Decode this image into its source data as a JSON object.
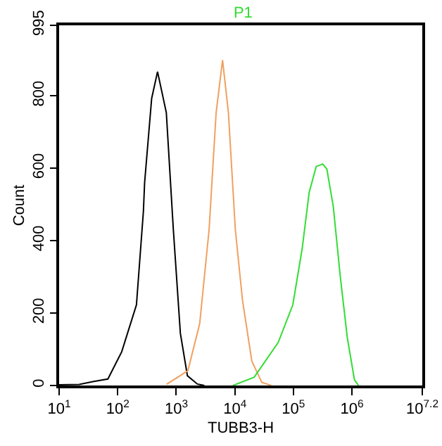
{
  "chart_data": {
    "type": "line",
    "title": "P1",
    "xlabel": "TUBB3-H",
    "ylabel": "Count",
    "log": "x",
    "xlim": [
      10,
      15848932
    ],
    "ylim": [
      0,
      995
    ],
    "xticks": [
      {
        "value": 10,
        "label": "10$^{1}$"
      },
      {
        "value": 100,
        "label": "10$^{2}$"
      },
      {
        "value": 1000,
        "label": "10$^{3}$"
      },
      {
        "value": 10000,
        "label": "10$^{4}$"
      },
      {
        "value": 100000,
        "label": "10$^{5}$"
      },
      {
        "value": 1000000,
        "label": "10$^{6}$"
      },
      {
        "value": 15848932,
        "label": "10$^{7.2}$"
      }
    ],
    "yticks": [
      0,
      200,
      400,
      600,
      800,
      995
    ],
    "grid": false,
    "marker": "none",
    "line_style": "solid",
    "series": [
      {
        "color": "#000000",
        "x": [
          10,
          22,
          39,
          68,
          117,
          209,
          275,
          288,
          380,
          479,
          676,
          891,
          1175,
          1549,
          2291,
          3020
        ],
        "values": [
          2,
          3,
          11,
          18,
          93,
          223,
          482,
          560,
          793,
          867,
          754,
          431,
          144,
          27,
          4,
          0
        ]
      },
      {
        "color": "#f0a060",
        "x": [
          680,
          1580,
          2510,
          3630,
          4790,
          6170,
          7760,
          10200,
          13500,
          19500,
          28800,
          41700
        ],
        "values": [
          3,
          41,
          171,
          430,
          754,
          899,
          754,
          430,
          236,
          67,
          9,
          0
        ]
      },
      {
        "color": "#33dd33",
        "x": [
          9330,
          21400,
          55000,
          97700,
          141000,
          186000,
          245000,
          316000,
          372000,
          479000,
          631000,
          832000,
          1100000,
          1290000
        ],
        "values": [
          0,
          23,
          119,
          223,
          378,
          534,
          605,
          612,
          598,
          495,
          301,
          132,
          16,
          0
        ]
      }
    ]
  }
}
